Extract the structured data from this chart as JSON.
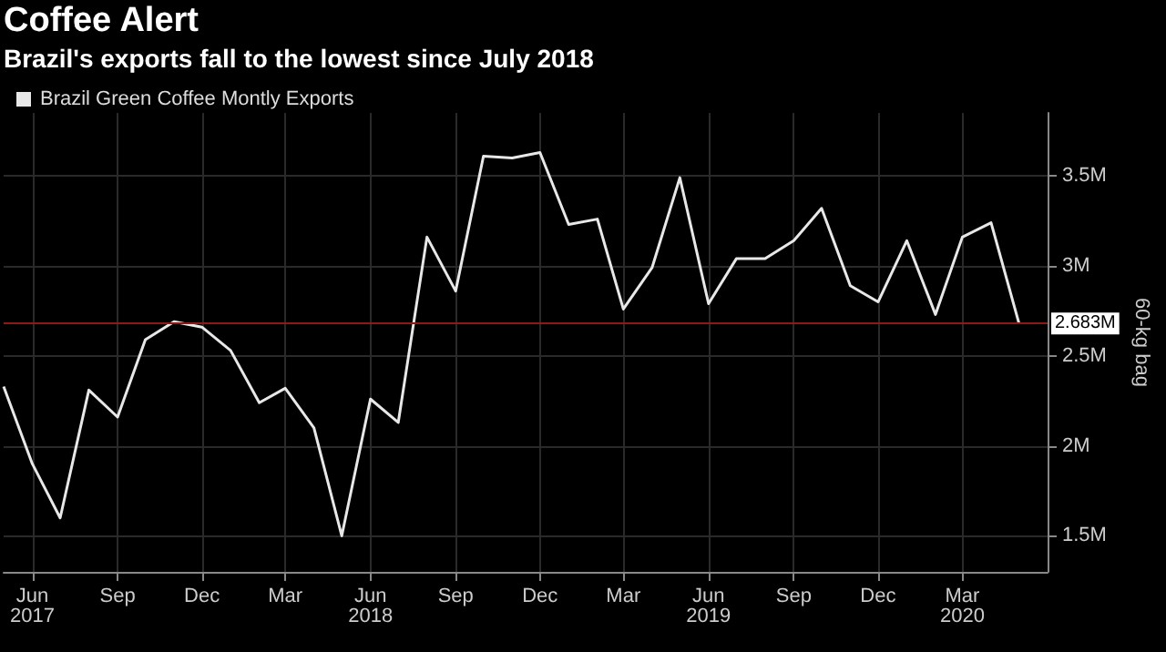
{
  "chart_data": {
    "type": "line",
    "title": "Coffee Alert",
    "subtitle": "Brazil's exports fall to the lowest since July 2018",
    "ylabel": "60-kg bag",
    "x": [
      "2017-05",
      "2017-06",
      "2017-07",
      "2017-08",
      "2017-09",
      "2017-10",
      "2017-11",
      "2017-12",
      "2018-01",
      "2018-02",
      "2018-03",
      "2018-04",
      "2018-05",
      "2018-06",
      "2018-07",
      "2018-08",
      "2018-09",
      "2018-10",
      "2018-11",
      "2018-12",
      "2019-01",
      "2019-02",
      "2019-03",
      "2019-04",
      "2019-05",
      "2019-06",
      "2019-07",
      "2019-08",
      "2019-09",
      "2019-10",
      "2019-11",
      "2019-12",
      "2020-01",
      "2020-02",
      "2020-03",
      "2020-04",
      "2020-05"
    ],
    "series": [
      {
        "name": "Brazil Green Coffee Montly Exports",
        "color": "#e8e8e8",
        "values": [
          2.33,
          1.9,
          1.6,
          2.31,
          2.16,
          2.59,
          2.69,
          2.66,
          2.53,
          2.24,
          2.32,
          2.1,
          1.5,
          2.26,
          2.13,
          3.16,
          2.86,
          3.61,
          3.6,
          3.63,
          3.23,
          3.26,
          2.76,
          2.99,
          3.49,
          2.79,
          3.04,
          3.04,
          3.14,
          3.32,
          2.89,
          2.8,
          3.14,
          2.73,
          3.16,
          3.24,
          2.683
        ]
      }
    ],
    "xlim": [
      "2017-05",
      "2020-06"
    ],
    "xticks": [
      {
        "value": "2017-06",
        "label": "Jun\n2017"
      },
      {
        "value": "2017-09",
        "label": "Sep"
      },
      {
        "value": "2017-12",
        "label": "Dec"
      },
      {
        "value": "2018-03",
        "label": "Mar"
      },
      {
        "value": "2018-06",
        "label": "Jun\n2018"
      },
      {
        "value": "2018-09",
        "label": "Sep"
      },
      {
        "value": "2018-12",
        "label": "Dec"
      },
      {
        "value": "2019-03",
        "label": "Mar"
      },
      {
        "value": "2019-06",
        "label": "Jun\n2019"
      },
      {
        "value": "2019-09",
        "label": "Sep"
      },
      {
        "value": "2019-12",
        "label": "Dec"
      },
      {
        "value": "2020-03",
        "label": "Mar\n2020"
      }
    ],
    "ylim": [
      1.3,
      3.85
    ],
    "yticks": [
      {
        "value": 1.5,
        "label": "1.5M"
      },
      {
        "value": 2,
        "label": "2M"
      },
      {
        "value": 2.5,
        "label": "2.5M"
      },
      {
        "value": 3,
        "label": "3M"
      },
      {
        "value": 3.5,
        "label": "3.5M"
      }
    ],
    "ref_lines": [
      {
        "axis": "y",
        "value": 2.683,
        "label": "2.683M",
        "color": "#8b1a1a"
      }
    ],
    "grid": true,
    "legend": "top left",
    "marker": "none",
    "line_style": "solid"
  }
}
